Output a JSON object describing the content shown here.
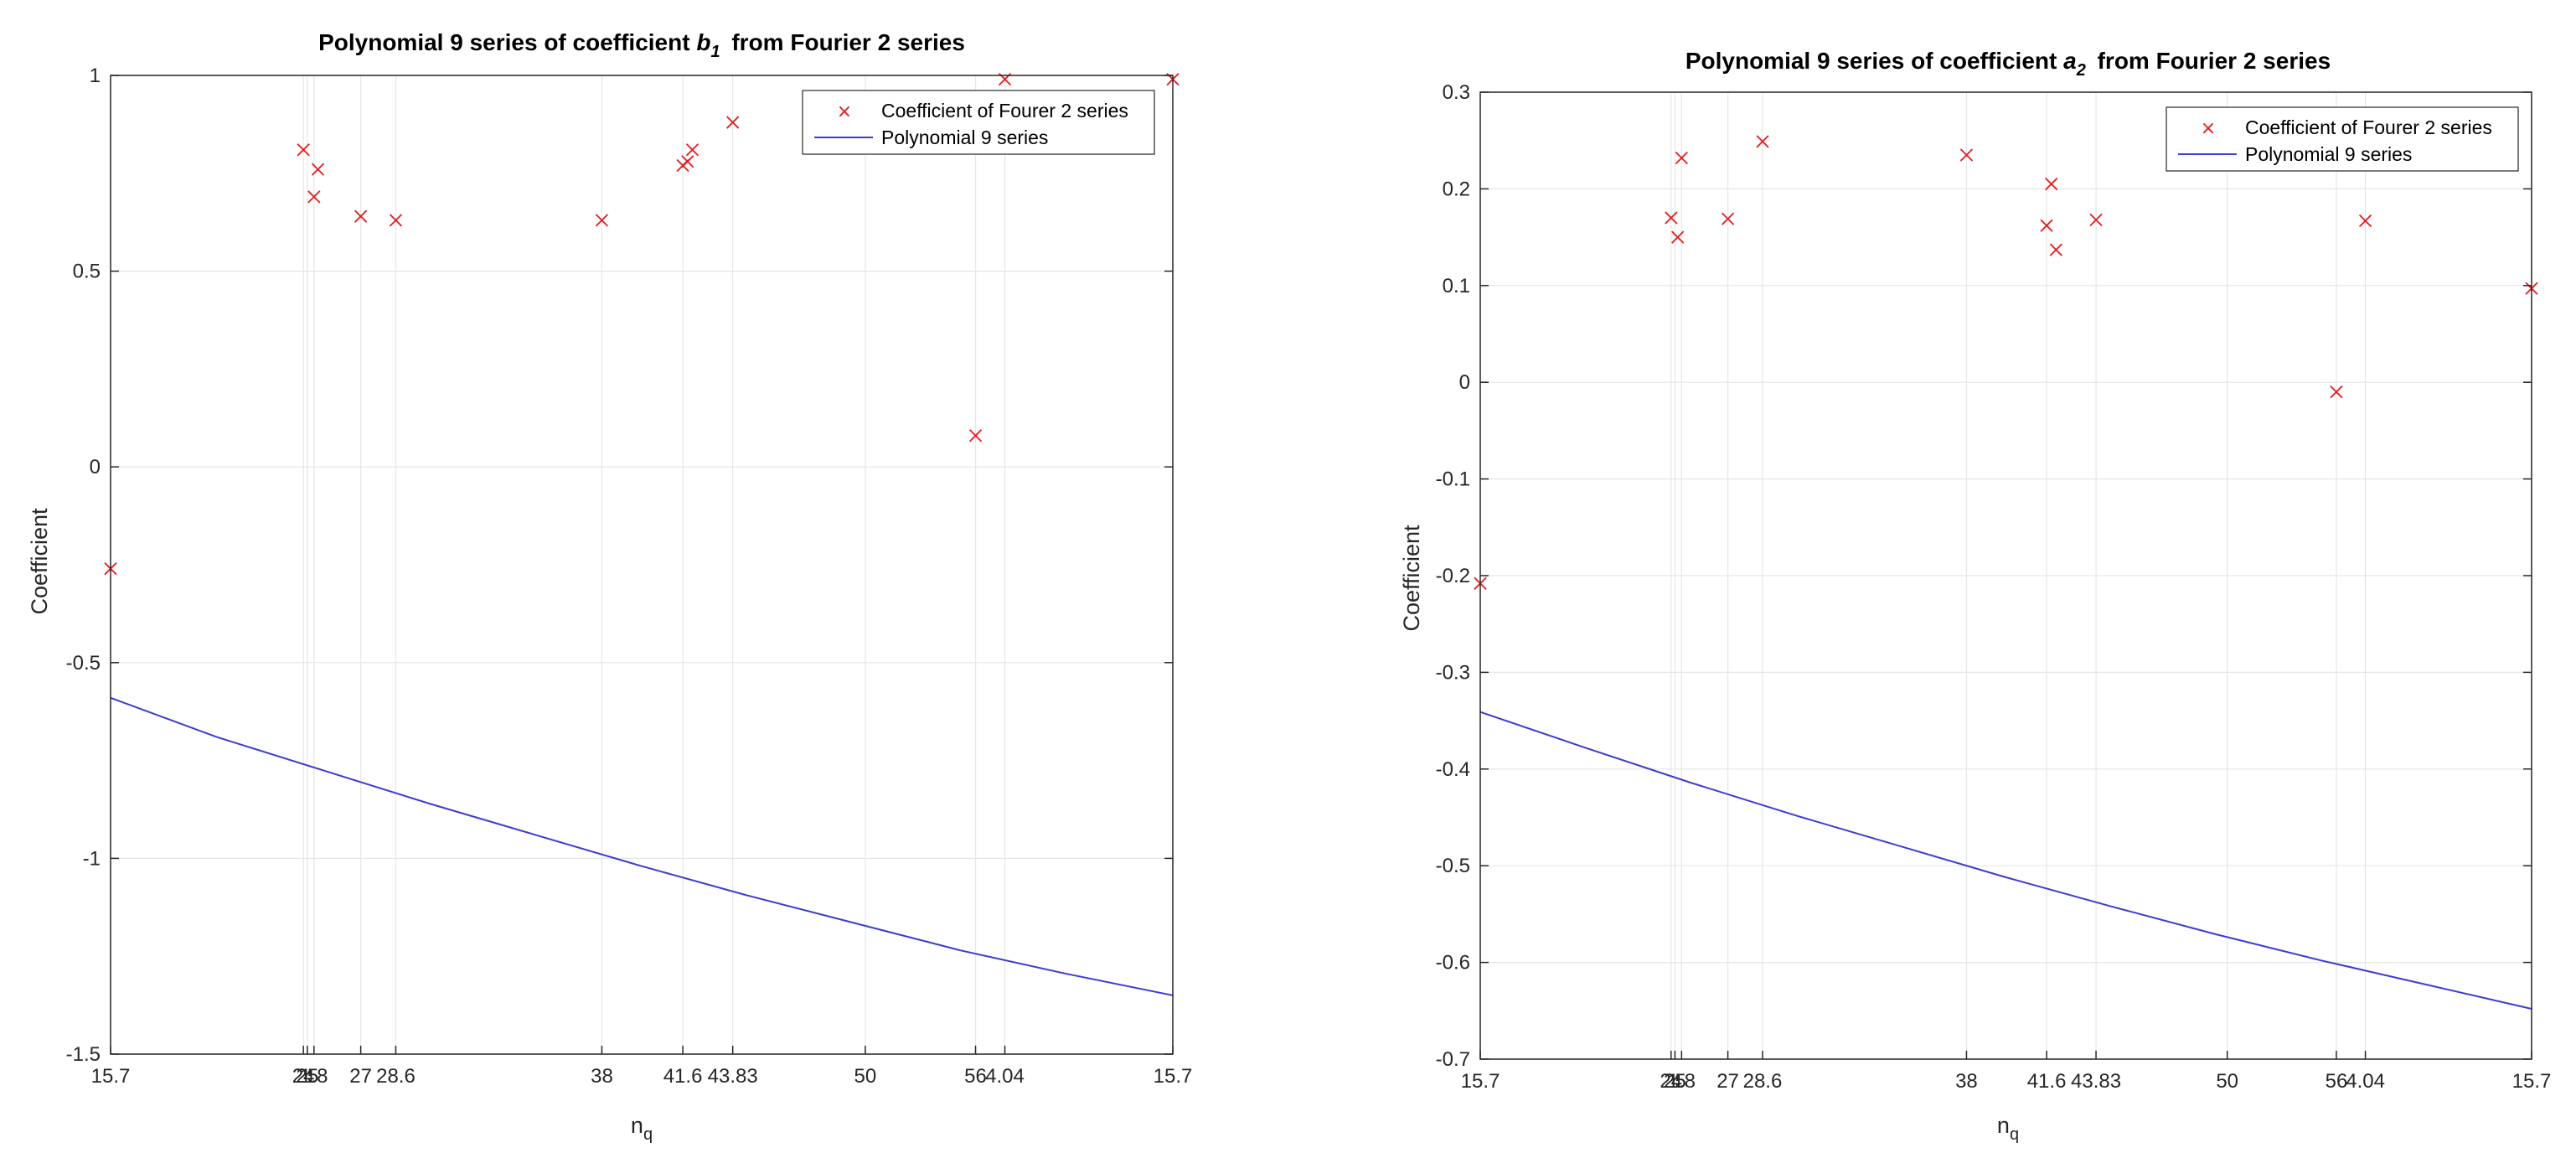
{
  "colors": {
    "marker": "#e41a1c",
    "line": "#3b3bd6",
    "grid": "#e6e6e6",
    "axis": "#262626"
  },
  "chart_data": [
    {
      "type": "scatter",
      "title_main": "Polynomial 9 series of coefficient",
      "title_symbol": "b",
      "title_subscript": "1",
      "title_tail": "from Fourier 2 series",
      "xlabel_main": "n",
      "xlabel_sub": "q",
      "ylabel": "Coefficient",
      "ylim": [
        -1.5,
        1
      ],
      "yticks": [
        -1.5,
        -1,
        -0.5,
        0,
        0.5,
        1
      ],
      "ytick_labels": [
        "-1.5",
        "-1",
        "-0.5",
        "0",
        "0.5",
        "1"
      ],
      "xticks": [
        {
          "label": "15.7",
          "pos": 0.0
        },
        {
          "label": "24",
          "pos": 0.1815
        },
        {
          "label": "25",
          "pos": 0.1852
        },
        {
          "label": "1.8",
          "pos": 0.1915
        },
        {
          "label": "27",
          "pos": 0.2355
        },
        {
          "label": "28.6",
          "pos": 0.2685
        },
        {
          "label": "38",
          "pos": 0.4625
        },
        {
          "label": "41.6",
          "pos": 0.5387
        },
        {
          "label": "43.83",
          "pos": 0.5857
        },
        {
          "label": "50",
          "pos": 0.7105
        },
        {
          "label": "56",
          "pos": 0.8143
        },
        {
          "label": "4.04",
          "pos": 0.8419
        },
        {
          "label": "15.7",
          "pos": 1.0
        }
      ],
      "grid": true,
      "legend": "top-right",
      "series": [
        {
          "name": "Coefficient of Fourer 2 series",
          "kind": "markers",
          "points": [
            {
              "x": 0.0,
              "y": -0.26
            },
            {
              "x": 0.1815,
              "y": 0.81
            },
            {
              "x": 0.1915,
              "y": 0.69
            },
            {
              "x": 0.1952,
              "y": 0.76
            },
            {
              "x": 0.2355,
              "y": 0.64
            },
            {
              "x": 0.2685,
              "y": 0.63
            },
            {
              "x": 0.4625,
              "y": 0.63
            },
            {
              "x": 0.5387,
              "y": 0.77
            },
            {
              "x": 0.5432,
              "y": 0.78
            },
            {
              "x": 0.5477,
              "y": 0.81
            },
            {
              "x": 0.5857,
              "y": 0.88
            },
            {
              "x": 0.8143,
              "y": 0.08
            },
            {
              "x": 0.8419,
              "y": 0.99
            },
            {
              "x": 1.0,
              "y": 0.99
            }
          ]
        },
        {
          "name": "Polynomial 9 series",
          "kind": "line",
          "points": [
            {
              "x": 0.0,
              "y": -0.59
            },
            {
              "x": 0.1,
              "y": -0.69
            },
            {
              "x": 0.2,
              "y": -0.775
            },
            {
              "x": 0.3,
              "y": -0.86
            },
            {
              "x": 0.4,
              "y": -0.94
            },
            {
              "x": 0.5,
              "y": -1.02
            },
            {
              "x": 0.6,
              "y": -1.095
            },
            {
              "x": 0.7,
              "y": -1.165
            },
            {
              "x": 0.8,
              "y": -1.235
            },
            {
              "x": 0.9,
              "y": -1.295
            },
            {
              "x": 1.0,
              "y": -1.35
            }
          ]
        }
      ]
    },
    {
      "type": "scatter",
      "title_main": "Polynomial 9 series of coefficient",
      "title_symbol": "a",
      "title_subscript": "2",
      "title_tail": "from Fourier 2 series",
      "xlabel_main": "n",
      "xlabel_sub": "q",
      "ylabel": "Coefficient",
      "ylim": [
        -0.7,
        0.3
      ],
      "yticks": [
        -0.7,
        -0.6,
        -0.5,
        -0.4,
        -0.3,
        -0.2,
        -0.1,
        0,
        0.1,
        0.2,
        0.3
      ],
      "ytick_labels": [
        "-0.7",
        "-0.6",
        "-0.5",
        "-0.4",
        "-0.3",
        "-0.2",
        "-0.1",
        "0",
        "0.1",
        "0.2",
        "0.3"
      ],
      "xticks": [
        {
          "label": "15.7",
          "pos": 0.0
        },
        {
          "label": "24",
          "pos": 0.1815
        },
        {
          "label": "25",
          "pos": 0.1852
        },
        {
          "label": "1.8",
          "pos": 0.1915
        },
        {
          "label": "27",
          "pos": 0.2355
        },
        {
          "label": "28.6",
          "pos": 0.2685
        },
        {
          "label": "38",
          "pos": 0.4625
        },
        {
          "label": "41.6",
          "pos": 0.5387
        },
        {
          "label": "43.83",
          "pos": 0.5857
        },
        {
          "label": "50",
          "pos": 0.7105
        },
        {
          "label": "56",
          "pos": 0.8143
        },
        {
          "label": "4.04",
          "pos": 0.8419
        },
        {
          "label": "15.7",
          "pos": 1.0
        }
      ],
      "grid": true,
      "legend": "top-right",
      "series": [
        {
          "name": "Coefficient of Fourer 2 series",
          "kind": "markers",
          "points": [
            {
              "x": 0.0,
              "y": -0.208
            },
            {
              "x": 0.1815,
              "y": 0.17
            },
            {
              "x": 0.1878,
              "y": 0.15
            },
            {
              "x": 0.1915,
              "y": 0.232
            },
            {
              "x": 0.2355,
              "y": 0.169
            },
            {
              "x": 0.2685,
              "y": 0.249
            },
            {
              "x": 0.4625,
              "y": 0.235
            },
            {
              "x": 0.5387,
              "y": 0.162
            },
            {
              "x": 0.5432,
              "y": 0.205
            },
            {
              "x": 0.5477,
              "y": 0.137
            },
            {
              "x": 0.5857,
              "y": 0.168
            },
            {
              "x": 0.8143,
              "y": -0.01
            },
            {
              "x": 0.8419,
              "y": 0.167
            },
            {
              "x": 1.0,
              "y": 0.097
            }
          ]
        },
        {
          "name": "Polynomial 9 series",
          "kind": "line",
          "points": [
            {
              "x": 0.0,
              "y": -0.341
            },
            {
              "x": 0.1,
              "y": -0.378
            },
            {
              "x": 0.2,
              "y": -0.414
            },
            {
              "x": 0.3,
              "y": -0.448
            },
            {
              "x": 0.4,
              "y": -0.48
            },
            {
              "x": 0.5,
              "y": -0.512
            },
            {
              "x": 0.6,
              "y": -0.542
            },
            {
              "x": 0.7,
              "y": -0.571
            },
            {
              "x": 0.8,
              "y": -0.598
            },
            {
              "x": 0.9,
              "y": -0.623
            },
            {
              "x": 1.0,
              "y": -0.648
            }
          ]
        }
      ]
    }
  ]
}
